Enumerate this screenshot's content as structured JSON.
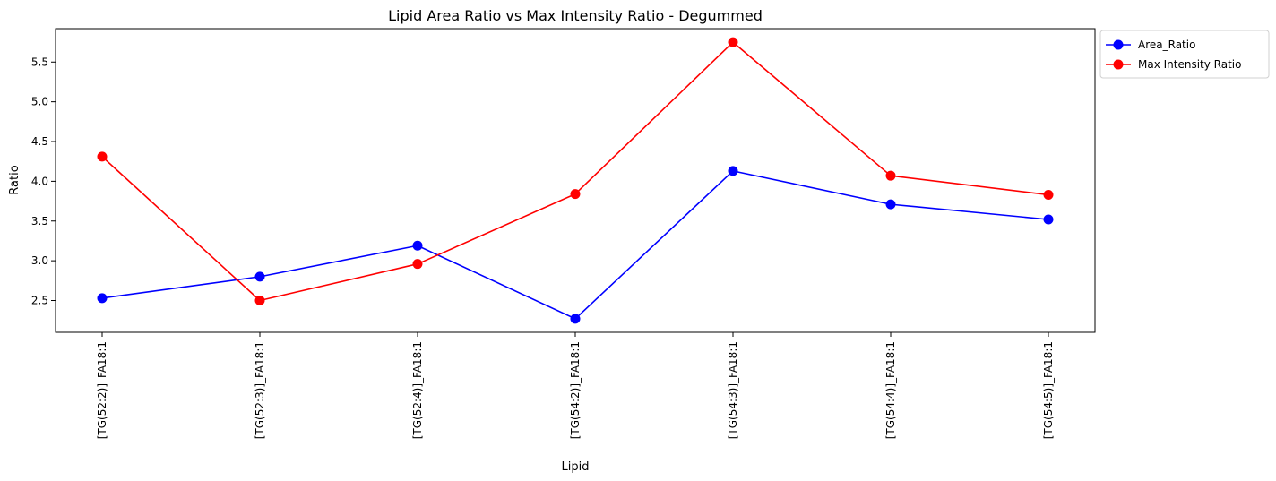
{
  "chart_data": {
    "type": "line",
    "title": "Lipid Area Ratio vs Max Intensity Ratio - Degummed",
    "xlabel": "Lipid",
    "ylabel": "Ratio",
    "categories": [
      "[TG(52:2)]_FA18:1",
      "[TG(52:3)]_FA18:1",
      "[TG(52:4)]_FA18:1",
      "[TG(54:2)]_FA18:1",
      "[TG(54:3)]_FA18:1",
      "[TG(54:4)]_FA18:1",
      "[TG(54:5)]_FA18:1"
    ],
    "series": [
      {
        "name": "Area_Ratio",
        "color": "#0000ff",
        "marker": "circle",
        "values": [
          2.53,
          2.8,
          3.19,
          2.27,
          4.13,
          3.71,
          3.52
        ]
      },
      {
        "name": "Max Intensity Ratio",
        "color": "#ff0000",
        "marker": "circle",
        "values": [
          4.31,
          2.5,
          2.96,
          3.84,
          5.75,
          4.07,
          3.83
        ]
      }
    ],
    "ylim": [
      2.1,
      5.92
    ],
    "yticks": [
      2.5,
      3.0,
      3.5,
      4.0,
      4.5,
      5.0,
      5.5
    ],
    "ytick_labels": [
      "2.5",
      "3.0",
      "3.5",
      "4.0",
      "4.5",
      "5.0",
      "5.5"
    ],
    "grid": false,
    "legend_position": "outside-top-right"
  }
}
